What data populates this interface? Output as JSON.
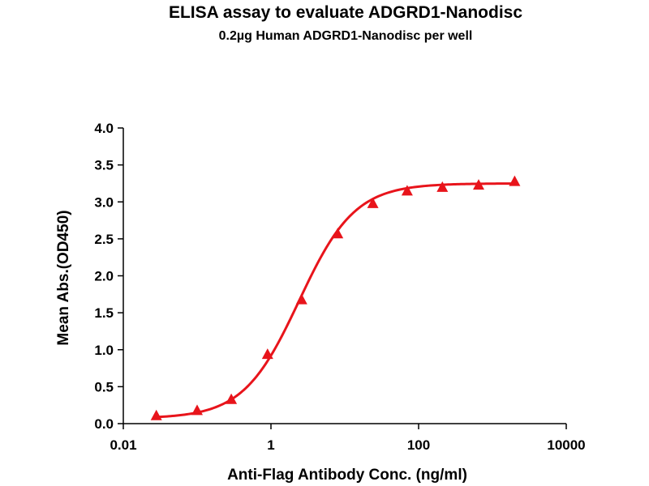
{
  "chart_data": {
    "type": "scatter",
    "title": "ELISA assay to evaluate ADGRD1-Nanodisc",
    "subtitle": "0.2µg Human ADGRD1-Nanodisc per well",
    "xlabel": "Anti-Flag Antibody Conc. (ng/ml)",
    "ylabel": "Mean Abs.(OD450)",
    "x_scale": "log",
    "xlim": [
      0.01,
      10000
    ],
    "ylim": [
      0,
      4.0
    ],
    "x_ticks": [
      0.01,
      1,
      100,
      10000
    ],
    "x_tick_labels": [
      "0.01",
      "1",
      "100",
      "10000"
    ],
    "y_ticks": [
      0,
      0.5,
      1.0,
      1.5,
      2.0,
      2.5,
      3.0,
      3.5,
      4.0
    ],
    "y_tick_labels": [
      "0.0",
      "0.5",
      "1.0",
      "1.5",
      "2.0",
      "2.5",
      "3.0",
      "3.5",
      "4.0"
    ],
    "grid": false,
    "legend": "none",
    "marker": "triangle",
    "color": "#e8141b",
    "series": [
      {
        "x": [
          0.028,
          0.1,
          0.29,
          0.9,
          2.6,
          8.0,
          24,
          70,
          210,
          650,
          2000
        ],
        "y": [
          0.1,
          0.17,
          0.32,
          0.93,
          1.67,
          2.56,
          2.97,
          3.14,
          3.19,
          3.22,
          3.27
        ]
      }
    ],
    "fit_curve": {
      "type": "4PL",
      "bottom": 0.07,
      "top": 3.25,
      "ec50": 2.4,
      "hill": 1.15
    }
  }
}
